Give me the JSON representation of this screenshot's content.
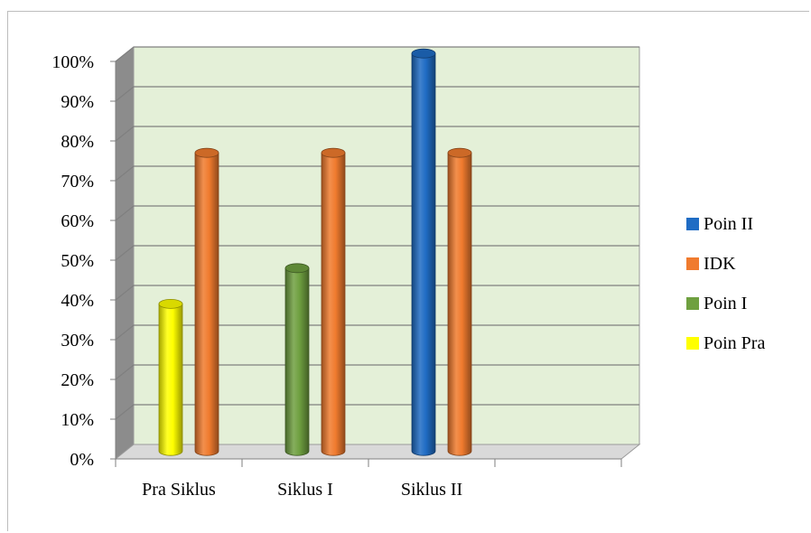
{
  "chart_data": {
    "type": "bar",
    "title": "",
    "xlabel": "",
    "ylabel": "",
    "categories": [
      "Pra Siklus",
      "Siklus I",
      "Siklus II",
      ""
    ],
    "ylim": [
      0,
      100
    ],
    "yticks": [
      "0%",
      "10%",
      "20%",
      "30%",
      "40%",
      "50%",
      "60%",
      "70%",
      "80%",
      "90%",
      "100%"
    ],
    "grid": true,
    "legend_position": "right",
    "bars": [
      {
        "category": "Pra Siklus",
        "series": "Poin Pra",
        "value": 37,
        "color": "#ffff00"
      },
      {
        "category": "Pra Siklus",
        "series": "IDK",
        "value": 75,
        "color": "#f07b2e"
      },
      {
        "category": "Siklus I",
        "series": "Poin I",
        "value": 46,
        "color": "#6fa040"
      },
      {
        "category": "Siklus I",
        "series": "IDK",
        "value": 75,
        "color": "#f07b2e"
      },
      {
        "category": "Siklus II",
        "series": "Poin II",
        "value": 100,
        "color": "#1f6cc4"
      },
      {
        "category": "Siklus II",
        "series": "IDK",
        "value": 75,
        "color": "#f07b2e"
      }
    ],
    "legend": [
      {
        "name": "Poin II",
        "color": "#1f6cc4"
      },
      {
        "name": "IDK",
        "color": "#f07b2e"
      },
      {
        "name": "Poin I",
        "color": "#6fa040"
      },
      {
        "name": "Poin Pra",
        "color": "#ffff00"
      }
    ],
    "colors": {
      "plot_wall": "#e4f0d8",
      "side_wall": "#8c8c8c",
      "floor": "#d9d9d9",
      "gridline": "#7f7f7f"
    }
  }
}
